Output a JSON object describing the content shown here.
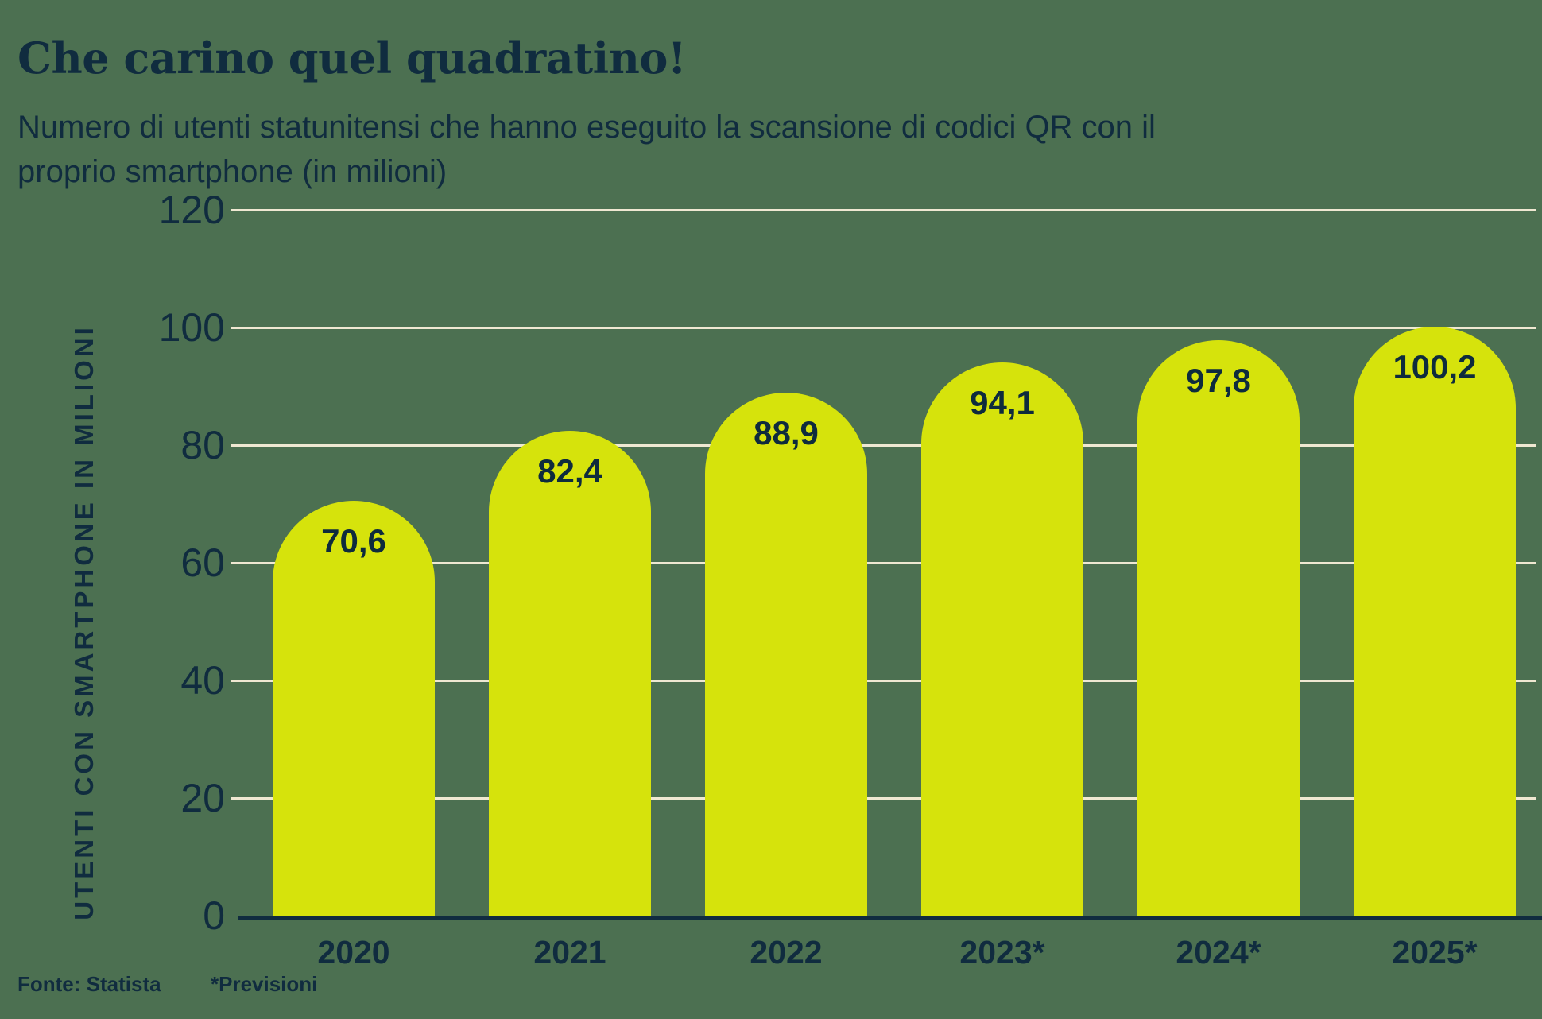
{
  "header": {
    "title": "Che carino quel quadratino!",
    "subtitle": "Numero di utenti statunitensi che hanno eseguito la scansione di codici QR con il proprio smartphone (in milioni)"
  },
  "chart_data": {
    "type": "bar",
    "title": "Che carino quel quadratino!",
    "subtitle": "Numero di utenti statunitensi che hanno eseguito la scansione di codici QR con il proprio smartphone (in milioni)",
    "categories": [
      "2020",
      "2021",
      "2022",
      "2023*",
      "2024*",
      "2025*"
    ],
    "values": [
      70.6,
      82.4,
      88.9,
      94.1,
      97.8,
      100.2
    ],
    "value_labels": [
      "70,6",
      "82,4",
      "88,9",
      "94,1",
      "97,8",
      "100,2"
    ],
    "xlabel": "",
    "ylabel": "UTENTI CON SMARTPHONE IN MILIONI",
    "ylim": [
      0,
      120
    ],
    "yticks": [
      0,
      20,
      40,
      60,
      80,
      100,
      120
    ],
    "grid": true,
    "legend": false,
    "colors": {
      "bar": "#d6e30c",
      "background": "#4c7051",
      "text": "#102c3f",
      "gridline": "#efe8d2",
      "baseline": "#102c3f"
    }
  },
  "footer": {
    "source": "Fonte: Statista",
    "note": "*Previsioni"
  }
}
